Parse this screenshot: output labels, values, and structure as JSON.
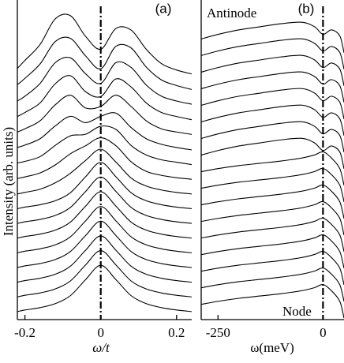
{
  "chart_data": [
    {
      "type": "line",
      "panel_label": "(a)",
      "y_label": "Intensity (arb. units)",
      "x_label": "ω/t",
      "color": "#000000",
      "xlim": [
        -0.22,
        0.24
      ],
      "ylim": [
        0,
        20
      ],
      "xticks": [
        -0.2,
        0,
        0.2
      ],
      "vline": 0,
      "x": [
        -0.22,
        -0.2,
        -0.16,
        -0.12,
        -0.08,
        -0.04,
        0,
        0.04,
        0.08,
        0.12,
        0.16,
        0.2,
        0.24
      ],
      "series": [
        {
          "values": [
            0.5,
            0.6,
            0.75,
            1.0,
            1.5,
            2.5,
            3.4,
            2.5,
            1.5,
            1.0,
            0.75,
            0.6,
            0.5
          ]
        },
        {
          "values": [
            1.42,
            1.52,
            1.67,
            1.92,
            2.42,
            3.42,
            4.32,
            3.42,
            2.42,
            1.92,
            1.67,
            1.52,
            1.42
          ]
        },
        {
          "values": [
            2.34,
            2.44,
            2.59,
            2.84,
            3.34,
            4.34,
            5.24,
            4.34,
            3.34,
            2.84,
            2.59,
            2.44,
            2.34
          ]
        },
        {
          "values": [
            3.26,
            3.36,
            3.51,
            3.76,
            4.26,
            5.26,
            6.16,
            5.26,
            4.26,
            3.76,
            3.51,
            3.36,
            3.26
          ]
        },
        {
          "values": [
            4.18,
            4.28,
            4.43,
            4.68,
            5.18,
            6.18,
            7.08,
            6.18,
            5.18,
            4.68,
            4.43,
            4.28,
            4.18
          ]
        },
        {
          "values": [
            5.1,
            5.2,
            5.35,
            5.6,
            6.1,
            7.1,
            8.0,
            7.1,
            6.1,
            5.6,
            5.35,
            5.2,
            5.1
          ]
        },
        {
          "values": [
            6.02,
            6.12,
            6.27,
            6.52,
            7.02,
            8.02,
            8.92,
            8.02,
            7.02,
            6.52,
            6.27,
            6.12,
            6.02
          ]
        },
        {
          "values": [
            6.94,
            7.04,
            7.19,
            7.44,
            7.94,
            8.94,
            9.84,
            8.94,
            7.94,
            7.44,
            7.19,
            7.04,
            6.94
          ]
        },
        {
          "values": [
            7.86,
            7.96,
            8.16,
            8.56,
            9.16,
            9.96,
            10.66,
            9.86,
            8.86,
            8.36,
            8.11,
            7.96,
            7.86
          ]
        },
        {
          "values": [
            8.83,
            8.93,
            9.18,
            9.68,
            10.38,
            10.88,
            11.38,
            10.88,
            9.88,
            9.28,
            9.03,
            8.88,
            8.78
          ]
        },
        {
          "values": [
            9.8,
            9.9,
            10.2,
            10.9,
            11.5,
            11.6,
            12.1,
            11.9,
            10.9,
            10.3,
            10.0,
            9.85,
            9.7
          ]
        },
        {
          "values": [
            10.77,
            10.92,
            11.32,
            12.12,
            12.72,
            12.32,
            12.72,
            12.92,
            12.02,
            11.32,
            10.97,
            10.77,
            10.62
          ]
        },
        {
          "values": [
            11.74,
            11.94,
            12.44,
            13.44,
            14.04,
            13.24,
            13.34,
            14.04,
            13.34,
            12.44,
            11.94,
            11.74,
            11.59
          ]
        },
        {
          "values": [
            12.71,
            12.96,
            13.56,
            14.76,
            15.26,
            14.26,
            13.96,
            15.06,
            14.56,
            13.56,
            12.96,
            12.71,
            12.51
          ]
        },
        {
          "values": [
            13.68,
            13.98,
            14.78,
            16.08,
            16.38,
            15.38,
            14.78,
            16.08,
            15.78,
            14.68,
            13.98,
            13.68,
            13.48
          ]
        },
        {
          "values": [
            14.7,
            15.1,
            16.0,
            17.4,
            17.6,
            16.5,
            15.7,
            17.1,
            17.0,
            15.8,
            15.0,
            14.65,
            14.4
          ]
        },
        {
          "values": [
            15.72,
            16.22,
            17.22,
            18.82,
            19.02,
            17.72,
            16.92,
            18.22,
            18.12,
            16.92,
            16.02,
            15.62,
            15.37
          ]
        }
      ]
    },
    {
      "type": "line",
      "panel_label": "(b)",
      "x_label": "ω(meV)",
      "color": "#000000",
      "annotations": [
        "Antinode",
        "Node"
      ],
      "xlim": [
        -290,
        50
      ],
      "ylim": [
        0,
        21
      ],
      "xticks": [
        -250,
        0
      ],
      "vline": 0,
      "x": [
        -290,
        -250,
        -200,
        -150,
        -100,
        -50,
        -20,
        0,
        20,
        40,
        50
      ],
      "series": [
        {
          "values": [
            1.0,
            1.2,
            1.4,
            1.55,
            1.7,
            1.9,
            2.1,
            2.3,
            1.9,
            1.2,
            0.1
          ]
        },
        {
          "values": [
            2.09,
            2.29,
            2.49,
            2.64,
            2.79,
            2.99,
            3.19,
            3.39,
            2.99,
            2.29,
            1.19
          ]
        },
        {
          "values": [
            3.18,
            3.38,
            3.58,
            3.73,
            3.88,
            4.08,
            4.28,
            4.48,
            4.08,
            3.38,
            2.28
          ]
        },
        {
          "values": [
            4.27,
            4.47,
            4.67,
            4.82,
            4.97,
            5.17,
            5.37,
            5.57,
            5.17,
            4.47,
            3.37
          ]
        },
        {
          "values": [
            5.36,
            5.56,
            5.76,
            5.91,
            6.06,
            6.26,
            6.46,
            6.66,
            6.26,
            5.56,
            4.46
          ]
        },
        {
          "values": [
            6.45,
            6.65,
            6.85,
            7.0,
            7.15,
            7.35,
            7.55,
            7.75,
            7.35,
            6.65,
            5.55
          ]
        },
        {
          "values": [
            7.54,
            7.74,
            7.94,
            8.09,
            8.24,
            8.44,
            8.64,
            8.84,
            8.44,
            7.74,
            6.64
          ]
        },
        {
          "values": [
            8.63,
            8.83,
            9.03,
            9.18,
            9.33,
            9.53,
            9.73,
            9.93,
            9.53,
            8.83,
            7.73
          ]
        },
        {
          "values": [
            9.72,
            9.92,
            10.12,
            10.27,
            10.42,
            10.62,
            10.82,
            11.02,
            10.62,
            9.92,
            8.82
          ]
        },
        {
          "values": [
            10.81,
            11.11,
            11.41,
            11.61,
            11.81,
            11.91,
            11.61,
            11.11,
            11.41,
            11.01,
            9.91
          ]
        },
        {
          "values": [
            11.9,
            12.2,
            12.5,
            12.7,
            12.9,
            13.0,
            12.7,
            12.2,
            12.5,
            12.1,
            11.0
          ]
        },
        {
          "values": [
            12.99,
            13.29,
            13.59,
            13.79,
            13.99,
            14.09,
            13.79,
            13.29,
            13.59,
            13.19,
            12.09
          ]
        },
        {
          "values": [
            14.08,
            14.38,
            14.68,
            14.88,
            15.08,
            15.18,
            14.88,
            14.38,
            14.68,
            14.28,
            13.18
          ]
        },
        {
          "values": [
            15.17,
            15.47,
            15.77,
            15.97,
            16.17,
            16.27,
            15.97,
            15.47,
            15.77,
            15.37,
            14.27
          ]
        },
        {
          "values": [
            16.26,
            16.56,
            16.86,
            17.06,
            17.26,
            17.36,
            17.06,
            16.56,
            16.86,
            16.46,
            15.36
          ]
        },
        {
          "values": [
            17.35,
            17.65,
            17.95,
            18.15,
            18.35,
            18.45,
            18.15,
            17.65,
            17.95,
            17.55,
            16.45
          ]
        },
        {
          "values": [
            18.44,
            18.74,
            19.04,
            19.24,
            19.44,
            19.54,
            19.24,
            18.74,
            19.04,
            18.64,
            17.54
          ]
        }
      ]
    }
  ]
}
